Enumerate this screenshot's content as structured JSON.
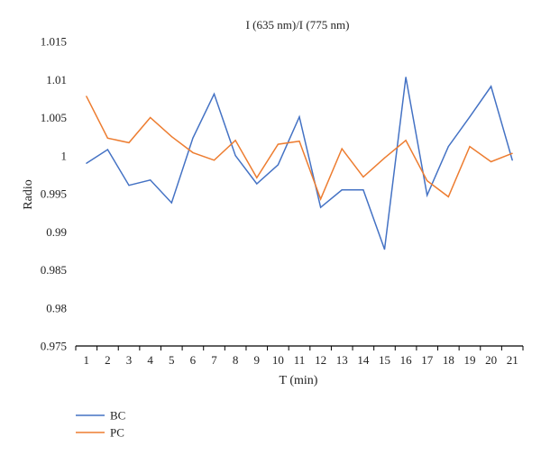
{
  "chart_data": {
    "type": "line",
    "title": "I (635 nm)/I (775 nm)",
    "xlabel": "T (min)",
    "ylabel": "Radio",
    "x": [
      1,
      2,
      3,
      4,
      5,
      6,
      7,
      8,
      9,
      10,
      11,
      12,
      13,
      14,
      15,
      16,
      17,
      18,
      19,
      20,
      21
    ],
    "ylim": [
      0.975,
      1.015
    ],
    "yticks": [
      "0.975",
      "0.98",
      "0.985",
      "0.99",
      "0.995",
      "1",
      "1.005",
      "1.01",
      "1.015"
    ],
    "grid": false,
    "legend_position": "bottom-left",
    "series": [
      {
        "name": "BC",
        "color": "#4472C4",
        "values": [
          0.999,
          1.0008,
          0.9961,
          0.9968,
          0.9938,
          1.0023,
          1.0081,
          1.0,
          0.9963,
          0.9988,
          1.0051,
          0.9932,
          0.9955,
          0.9955,
          0.9877,
          1.0103,
          0.9948,
          1.0012,
          1.0051,
          1.0091,
          0.9994
        ]
      },
      {
        "name": "PC",
        "color": "#ED7D31",
        "values": [
          1.0078,
          1.0023,
          1.0017,
          1.005,
          1.0025,
          1.0004,
          0.9994,
          1.002,
          0.9971,
          1.0015,
          1.0019,
          0.9943,
          1.0009,
          0.9972,
          0.9997,
          1.002,
          0.9967,
          0.9946,
          1.0012,
          0.9992,
          1.0003
        ]
      }
    ]
  }
}
